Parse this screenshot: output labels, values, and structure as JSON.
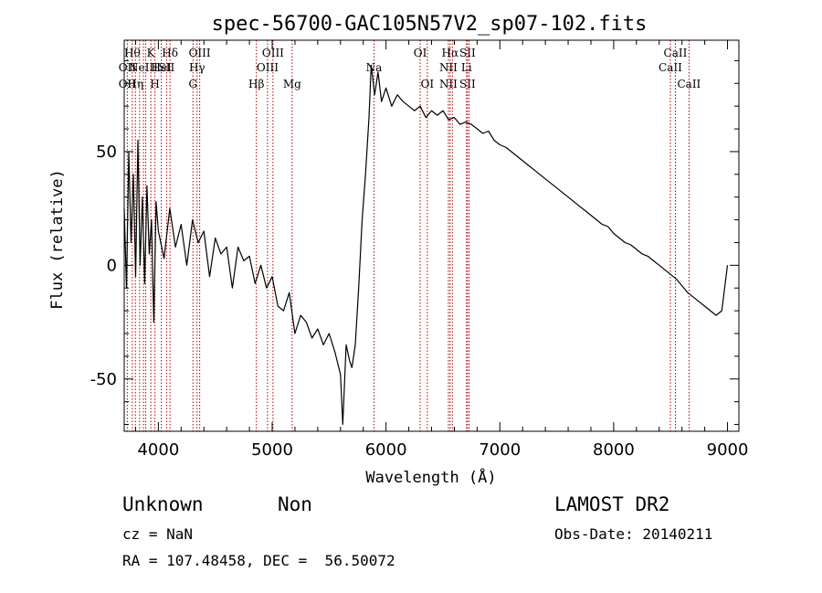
{
  "title": "spec-56700-GAC105N57V2_sp07-102.fits",
  "info": {
    "class": "Unknown",
    "subclass": "Non",
    "cz": "cz = NaN",
    "radec": "RA = 107.48458, DEC =  56.50072",
    "survey": "LAMOST DR2",
    "obsdate": "Obs-Date: 20140211"
  },
  "chart_data": {
    "type": "line",
    "title": "spec-56700-GAC105N57V2_sp07-102.fits",
    "xlabel": "Wavelength (Å)",
    "ylabel": "Flux (relative)",
    "xlim": [
      3700,
      9100
    ],
    "ylim": [
      -73,
      99
    ],
    "xticks": [
      4000,
      5000,
      6000,
      7000,
      8000,
      9000
    ],
    "yticks": [
      -50,
      0,
      50
    ],
    "grid": false,
    "series": [
      {
        "x": [
          3700,
          3720,
          3740,
          3760,
          3780,
          3800,
          3820,
          3840,
          3860,
          3880,
          3900,
          3920,
          3940,
          3960,
          3980,
          4000,
          4050,
          4100,
          4150,
          4200,
          4250,
          4300,
          4350,
          4400,
          4450,
          4500,
          4550,
          4600,
          4650,
          4700,
          4750,
          4800,
          4850,
          4900,
          4950,
          5000,
          5050,
          5100,
          5150,
          5200,
          5250,
          5300,
          5350,
          5400,
          5450,
          5500,
          5550,
          5600,
          5620,
          5650,
          5680,
          5700,
          5730,
          5760,
          5790,
          5820,
          5850,
          5870,
          5900,
          5930,
          5960,
          6000,
          6050,
          6100,
          6150,
          6200,
          6250,
          6300,
          6350,
          6400,
          6450,
          6500,
          6550,
          6600,
          6650,
          6700,
          6750,
          6800,
          6850,
          6900,
          6950,
          7000,
          7050,
          7100,
          7150,
          7200,
          7250,
          7300,
          7350,
          7400,
          7450,
          7500,
          7550,
          7600,
          7650,
          7700,
          7750,
          7800,
          7850,
          7900,
          7950,
          8000,
          8050,
          8100,
          8150,
          8200,
          8250,
          8300,
          8350,
          8400,
          8450,
          8500,
          8550,
          8600,
          8650,
          8700,
          8750,
          8800,
          8850,
          8900,
          8950,
          8980,
          9000
        ],
        "y": [
          25,
          -10,
          50,
          10,
          40,
          -5,
          55,
          0,
          30,
          -8,
          35,
          5,
          20,
          -25,
          28,
          15,
          3,
          25,
          8,
          18,
          0,
          20,
          10,
          15,
          -5,
          12,
          5,
          8,
          -10,
          8,
          2,
          4,
          -8,
          0,
          -10,
          -5,
          -18,
          -20,
          -12,
          -30,
          -22,
          -25,
          -32,
          -28,
          -35,
          -30,
          -38,
          -48,
          -70,
          -35,
          -42,
          -45,
          -35,
          -10,
          20,
          40,
          65,
          88,
          75,
          85,
          72,
          78,
          70,
          75,
          72,
          70,
          68,
          70,
          65,
          68,
          66,
          68,
          64,
          65,
          62,
          63,
          62,
          60,
          58,
          59,
          55,
          53,
          52,
          50,
          48,
          46,
          44,
          42,
          40,
          38,
          36,
          34,
          32,
          30,
          28,
          26,
          24,
          22,
          20,
          18,
          17,
          14,
          12,
          10,
          9,
          7,
          5,
          4,
          2,
          0,
          -2,
          -4,
          -6,
          -9,
          -12,
          -14,
          -16,
          -18,
          -20,
          -22,
          -20,
          -8,
          0
        ]
      }
    ],
    "annotations": [
      {
        "w": 3727,
        "rows": [
          "",
          "OII",
          "OII"
        ]
      },
      {
        "w": 3771,
        "rows": [
          "Hθ",
          "",
          ""
        ]
      },
      {
        "w": 3798,
        "rows": [
          "",
          "",
          "Hη"
        ]
      },
      {
        "w": 3835,
        "rows": [
          "",
          "",
          ""
        ]
      },
      {
        "w": 3869,
        "rows": [
          "",
          "NeIII",
          ""
        ]
      },
      {
        "w": 3889,
        "rows": [
          "",
          "",
          ""
        ]
      },
      {
        "w": 3934,
        "rows": [
          "K",
          "",
          ""
        ]
      },
      {
        "w": 3970,
        "rows": [
          "",
          "",
          "H"
        ]
      },
      {
        "w": 4026,
        "rows": [
          "",
          "HeI",
          ""
        ]
      },
      {
        "w": 4072,
        "rows": [
          "",
          "SII",
          ""
        ]
      },
      {
        "w": 4102,
        "rows": [
          "Hδ",
          "",
          ""
        ]
      },
      {
        "w": 4304,
        "rows": [
          "",
          "",
          "G"
        ]
      },
      {
        "w": 4340,
        "rows": [
          "",
          "Hγ",
          ""
        ]
      },
      {
        "w": 4363,
        "rows": [
          "OIII",
          "",
          ""
        ]
      },
      {
        "w": 4861,
        "rows": [
          "",
          "",
          "Hβ"
        ]
      },
      {
        "w": 4959,
        "rows": [
          "",
          "OIII",
          ""
        ]
      },
      {
        "w": 5007,
        "rows": [
          "OIII",
          "",
          ""
        ]
      },
      {
        "w": 5175,
        "rows": [
          "",
          "",
          "Mg"
        ]
      },
      {
        "w": 5894,
        "rows": [
          "",
          "Na",
          ""
        ]
      },
      {
        "w": 6300,
        "rows": [
          "OI",
          "",
          ""
        ]
      },
      {
        "w": 6363,
        "rows": [
          "",
          "",
          "OI"
        ]
      },
      {
        "w": 6548,
        "rows": [
          "",
          "NII",
          "NII"
        ]
      },
      {
        "w": 6563,
        "rows": [
          "Hα",
          "",
          ""
        ]
      },
      {
        "w": 6583,
        "rows": [
          "",
          "",
          ""
        ]
      },
      {
        "w": 6707,
        "rows": [
          "",
          "Li",
          ""
        ]
      },
      {
        "w": 6716,
        "rows": [
          "SII",
          "",
          "SII"
        ]
      },
      {
        "w": 6731,
        "rows": [
          "",
          "",
          ""
        ]
      },
      {
        "w": 8498,
        "rows": [
          "",
          "CaII",
          ""
        ]
      },
      {
        "w": 8542,
        "rows": [
          "CaII",
          "",
          ""
        ]
      },
      {
        "w": 8662,
        "rows": [
          "",
          "",
          "CaII"
        ]
      }
    ]
  }
}
